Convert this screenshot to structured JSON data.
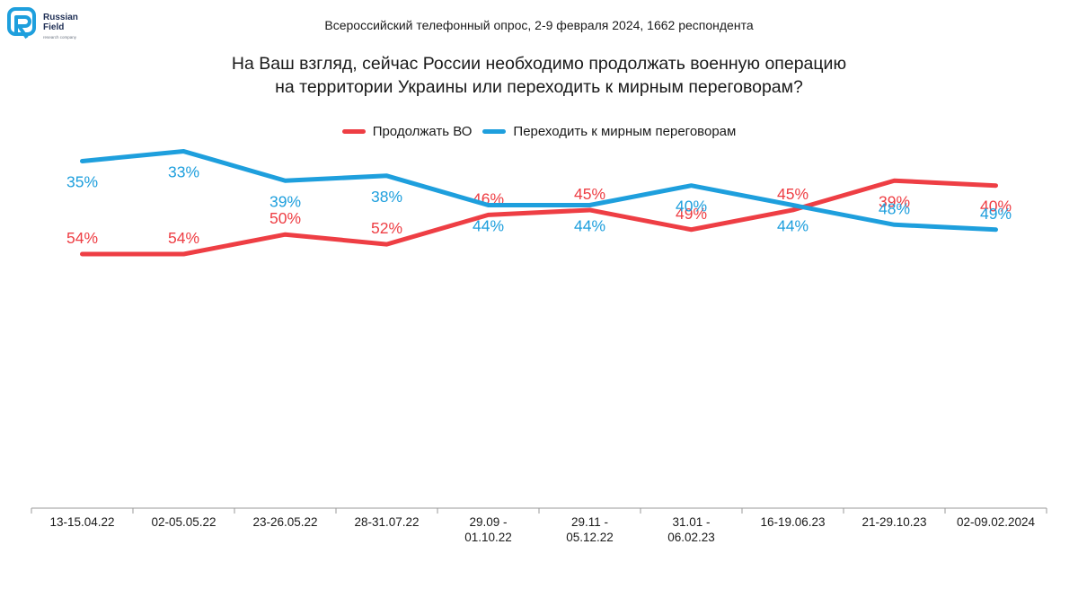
{
  "logo": {
    "name": "Russian\nField",
    "tagline": "research company"
  },
  "header": {
    "subtitle": "Всероссийский телефонный опрос, 2-9 февраля 2024, 1662 респондента"
  },
  "title_lines": [
    "На Ваш взгляд, сейчас России необходимо продолжать военную операцию",
    "на территории Украины или переходить к мирным переговорам?"
  ],
  "colors": {
    "red": "#ee3e44",
    "blue": "#1e9fdd",
    "axis": "#9a9a9a",
    "text": "#1a1a1a"
  },
  "chart_data": {
    "type": "line",
    "title": "На Ваш взгляд, сейчас России необходимо продолжать военную операцию на территории Украины или переходить к мирным переговорам?",
    "subtitle": "Всероссийский телефонный опрос, 2-9 февраля 2024, 1662 респондента",
    "xlabel": "",
    "ylabel": "",
    "legend_position": "top-center",
    "grid": false,
    "categories": [
      [
        "13-15.04.22"
      ],
      [
        "02-05.05.22"
      ],
      [
        "23-26.05.22"
      ],
      [
        "28-31.07.22"
      ],
      [
        "29.09 -",
        "01.10.22"
      ],
      [
        "29.11 -",
        "05.12.22"
      ],
      [
        "31.01 -",
        "06.02.23"
      ],
      [
        "16-19.06.23"
      ],
      [
        "21-29.10.23"
      ],
      [
        "02-09.02.2024"
      ]
    ],
    "series": [
      {
        "name": "Продолжать ВО",
        "color": "#ee3e44",
        "values": [
          54,
          54,
          50,
          52,
          46,
          45,
          49,
          45,
          39,
          40
        ],
        "labels": [
          "54%",
          "54%",
          "50%",
          "52%",
          "46%",
          "45%",
          "49%",
          "45%",
          "39%",
          "40%"
        ]
      },
      {
        "name": "Переходить к мирным переговорам",
        "color": "#1e9fdd",
        "values": [
          35,
          33,
          39,
          38,
          44,
          44,
          40,
          44,
          48,
          49
        ],
        "labels": [
          "35%",
          "33%",
          "39%",
          "38%",
          "44%",
          "44%",
          "40%",
          "44%",
          "48%",
          "49%"
        ]
      }
    ]
  }
}
